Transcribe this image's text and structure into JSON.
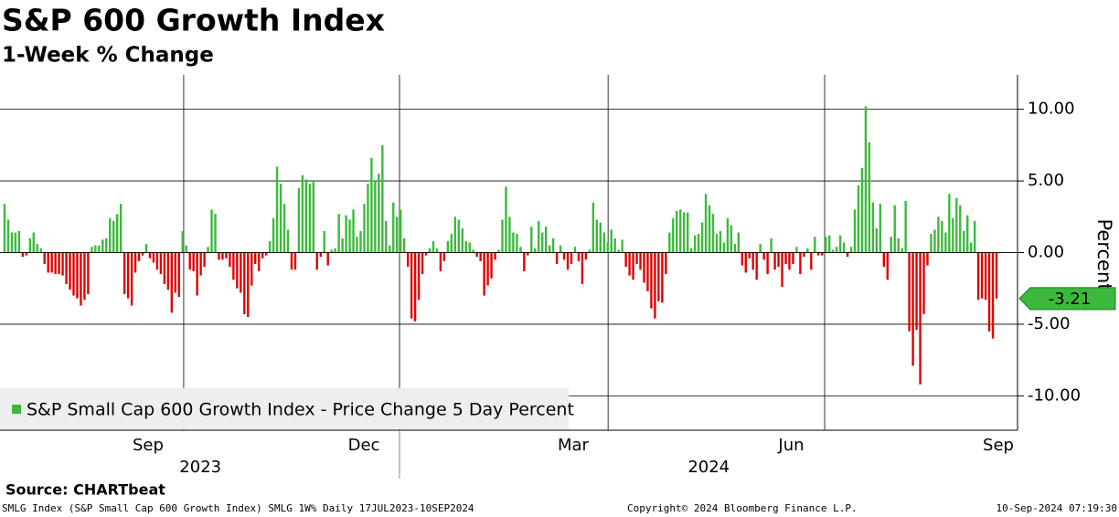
{
  "chart_data": {
    "type": "bar",
    "title": "S&P 600 Growth Index",
    "subtitle": "1-Week % Change",
    "y_label": "Percent",
    "legend_label": "S&P Small Cap 600 Growth Index - Price Change 5 Day Percent",
    "source": "Source: CHARTbeat",
    "footer_left": "SMLG Index (S&P Small Cap 600 Growth Index) SMLG 1W%  Daily 17JUL2023-10SEP2024",
    "footer_center": "Copyright© 2024 Bloomberg Finance L.P.",
    "footer_right": "10-Sep-2024 07:19:30",
    "positive_color": "#3cb93c",
    "negative_color": "#e00000",
    "grid": true,
    "ylim": [
      -12.4,
      12.4
    ],
    "yticks": [
      {
        "value": 10,
        "label": "10.00"
      },
      {
        "value": 5,
        "label": "5.00"
      },
      {
        "value": 0,
        "label": "0.00"
      },
      {
        "value": -5,
        "label": "-5.00"
      },
      {
        "value": -10,
        "label": "-10.00"
      }
    ],
    "xlim": [
      0,
      274
    ],
    "xticks": [
      {
        "value": 40,
        "label": "Sep"
      },
      {
        "value": 99.4,
        "label": "Dec"
      },
      {
        "value": 157,
        "label": "Mar"
      },
      {
        "value": 217,
        "label": "Jun"
      },
      {
        "value": 274,
        "label": "Sep"
      }
    ],
    "year_labels": [
      {
        "value": 54.4,
        "label": "2023"
      },
      {
        "value": 194.3,
        "label": "2024"
      }
    ],
    "xgrid": [
      49.8,
      109.2,
      166.6,
      226.2
    ],
    "values": [
      3.4,
      2.3,
      1.4,
      1.4,
      1.5,
      -0.3,
      -0.2,
      1.0,
      1.4,
      0.6,
      0.3,
      -0.8,
      -1.4,
      -1.4,
      -1.5,
      -1.5,
      -1.6,
      -2.2,
      -2.6,
      -3.0,
      -3.2,
      -3.7,
      -3.3,
      -2.9,
      0.4,
      0.5,
      0.5,
      0.9,
      1.0,
      2.4,
      2.2,
      2.7,
      3.4,
      -2.9,
      -3.2,
      -3.7,
      -1.4,
      -0.6,
      -0.2,
      0.6,
      -0.4,
      -0.7,
      -1.2,
      -1.5,
      -2.2,
      -2.6,
      -4.2,
      -2.8,
      -3.1,
      1.5,
      0.5,
      -1.2,
      -1.3,
      -3.0,
      -1.6,
      -1.0,
      0.4,
      3.0,
      2.7,
      -0.5,
      -0.5,
      -0.4,
      -1.0,
      -1.9,
      -2.5,
      -2.8,
      -4.3,
      -4.5,
      -2.3,
      -0.8,
      -1.3,
      -0.4,
      -0.2,
      0.8,
      2.4,
      6.0,
      4.8,
      3.4,
      1.6,
      -1.2,
      -1.2,
      4.5,
      5.4,
      5.1,
      4.8,
      5.0,
      -1.2,
      -0.3,
      1.5,
      -0.9,
      0.2,
      0.3,
      2.7,
      1.0,
      2.6,
      2.3,
      3.0,
      1.1,
      1.5,
      3.4,
      4.8,
      6.6,
      5.0,
      5.5,
      7.5,
      2.2,
      0.5,
      3.5,
      2.5,
      3.0,
      1.0,
      -1.0,
      -4.6,
      -4.8,
      -3.3,
      -1.5,
      -0.2,
      0.3,
      0.8,
      0.3,
      -1.3,
      -0.6,
      0.8,
      1.3,
      2.5,
      2.3,
      1.7,
      0.8,
      0.7,
      0.2,
      -0.3,
      -0.6,
      -3.0,
      -2.3,
      -1.8,
      -0.5,
      0.2,
      2.3,
      4.6,
      2.5,
      1.4,
      1.3,
      0.4,
      -1.3,
      -0.2,
      1.8,
      0.3,
      2.2,
      1.4,
      1.8,
      0.5,
      1.0,
      -0.8,
      0.5,
      -0.5,
      -1.2,
      -0.8,
      0.4,
      -0.6,
      -2.2,
      -0.5,
      0.2,
      3.5,
      2.3,
      2.1,
      1.4,
      0.7,
      1.6,
      1.0,
      0.2,
      0.9,
      -1.0,
      -1.6,
      -1.9,
      -0.8,
      -1.2,
      -2.1,
      -2.7,
      -3.9,
      -4.6,
      -3.4,
      -3.5,
      -1.5,
      1.4,
      2.4,
      2.9,
      3.0,
      2.8,
      2.8,
      0.3,
      1.2,
      1.3,
      2.1,
      4.1,
      3.3,
      2.7,
      1.3,
      1.5,
      0.7,
      2.4,
      1.9,
      0.6,
      1.4,
      -0.9,
      -1.4,
      -0.4,
      -1.2,
      -1.9,
      0.6,
      -0.5,
      -1.5,
      1.0,
      -1.2,
      -1.0,
      -2.4,
      -0.8,
      -1.2,
      -0.8,
      0.4,
      -1.5,
      -0.3,
      0.3,
      -1.2,
      1.1,
      -0.2,
      -0.2,
      1.1,
      1.2,
      0.2,
      0.4,
      1.2,
      0.7,
      -0.3,
      0.4,
      3.0,
      4.7,
      5.9,
      10.2,
      7.7,
      3.5,
      1.7,
      3.4,
      -1.0,
      -1.9,
      1.1,
      3.3,
      1.0,
      0.3,
      3.6,
      -5.5,
      -7.9,
      -5.4,
      -9.2,
      -4.3,
      -0.9,
      1.3,
      1.6,
      2.5,
      2.2,
      1.4,
      4.1,
      2.4,
      3.8,
      3.3,
      1.5,
      2.6,
      0.7,
      2.2,
      -3.3,
      -3.2,
      -3.3,
      -5.5,
      -6.0,
      -3.21
    ]
  }
}
